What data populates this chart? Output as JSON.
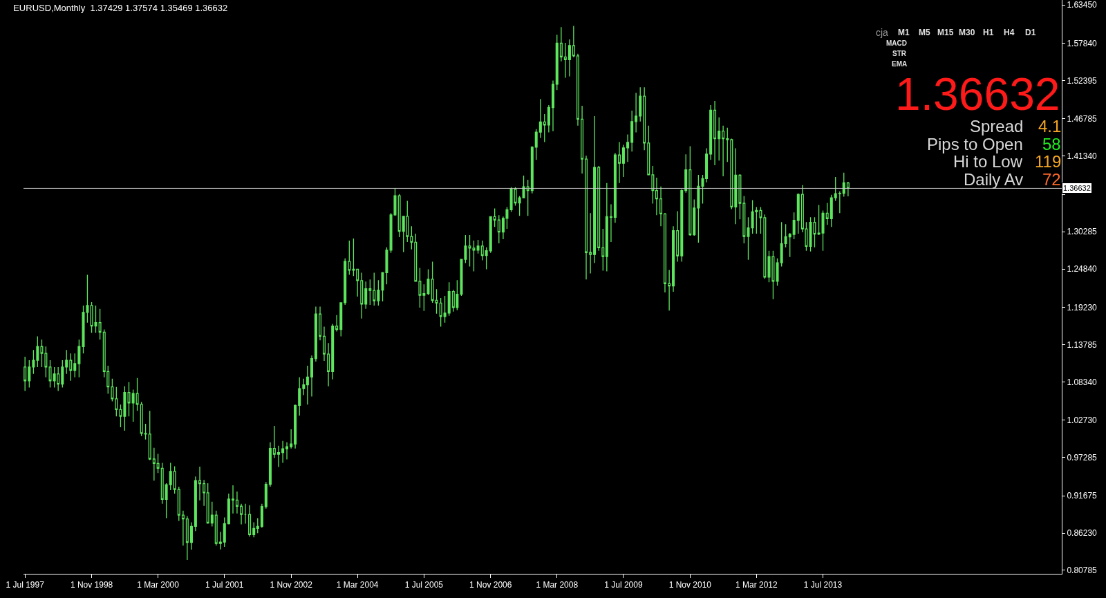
{
  "chart_data": {
    "type": "candlestick",
    "title": "EURUSD,Monthly  1.37429 1.37574 1.35469 1.36632",
    "color": "#5ee65e",
    "x": [
      "1997-07",
      "1997-08",
      "1997-09",
      "1997-10",
      "1997-11",
      "1997-12",
      "1998-01",
      "1998-02",
      "1998-03",
      "1998-04",
      "1998-05",
      "1998-06",
      "1998-07",
      "1998-08",
      "1998-09",
      "1998-10",
      "1998-11",
      "1998-12",
      "1999-01",
      "1999-02",
      "1999-03",
      "1999-04",
      "1999-05",
      "1999-06",
      "1999-07",
      "1999-08",
      "1999-09",
      "1999-10",
      "1999-11",
      "1999-12",
      "2000-01",
      "2000-02",
      "2000-03",
      "2000-04",
      "2000-05",
      "2000-06",
      "2000-07",
      "2000-08",
      "2000-09",
      "2000-10",
      "2000-11",
      "2000-12",
      "2001-01",
      "2001-02",
      "2001-03",
      "2001-04",
      "2001-05",
      "2001-06",
      "2001-07",
      "2001-08",
      "2001-09",
      "2001-10",
      "2001-11",
      "2001-12",
      "2002-01",
      "2002-02",
      "2002-03",
      "2002-04",
      "2002-05",
      "2002-06",
      "2002-07",
      "2002-08",
      "2002-09",
      "2002-10",
      "2002-11",
      "2002-12",
      "2003-01",
      "2003-02",
      "2003-03",
      "2003-04",
      "2003-05",
      "2003-06",
      "2003-07",
      "2003-08",
      "2003-09",
      "2003-10",
      "2003-11",
      "2003-12",
      "2004-01",
      "2004-02",
      "2004-03",
      "2004-04",
      "2004-05",
      "2004-06",
      "2004-07",
      "2004-08",
      "2004-09",
      "2004-10",
      "2004-11",
      "2004-12",
      "2005-01",
      "2005-02",
      "2005-03",
      "2005-04",
      "2005-05",
      "2005-06",
      "2005-07",
      "2005-08",
      "2005-09",
      "2005-10",
      "2005-11",
      "2005-12",
      "2006-01",
      "2006-02",
      "2006-03",
      "2006-04",
      "2006-05",
      "2006-06",
      "2006-07",
      "2006-08",
      "2006-09",
      "2006-10",
      "2006-11",
      "2006-12",
      "2007-01",
      "2007-02",
      "2007-03",
      "2007-04",
      "2007-05",
      "2007-06",
      "2007-07",
      "2007-08",
      "2007-09",
      "2007-10",
      "2007-11",
      "2007-12",
      "2008-01",
      "2008-02",
      "2008-03",
      "2008-04",
      "2008-05",
      "2008-06",
      "2008-07",
      "2008-08",
      "2008-09",
      "2008-10",
      "2008-11",
      "2008-12",
      "2009-01",
      "2009-02",
      "2009-03",
      "2009-04",
      "2009-05",
      "2009-06",
      "2009-07",
      "2009-08",
      "2009-09",
      "2009-10",
      "2009-11",
      "2009-12",
      "2010-01",
      "2010-02",
      "2010-03",
      "2010-04",
      "2010-05",
      "2010-06",
      "2010-07",
      "2010-08",
      "2010-09",
      "2010-10",
      "2010-11",
      "2010-12",
      "2011-01",
      "2011-02",
      "2011-03",
      "2011-04",
      "2011-05",
      "2011-06",
      "2011-07",
      "2011-08",
      "2011-09",
      "2011-10",
      "2011-11",
      "2011-12",
      "2012-01",
      "2012-02",
      "2012-03",
      "2012-04",
      "2012-05",
      "2012-06",
      "2012-07",
      "2012-08",
      "2012-09",
      "2012-10",
      "2012-11",
      "2012-12",
      "2013-01",
      "2013-02",
      "2013-03",
      "2013-04",
      "2013-05",
      "2013-06",
      "2013-07",
      "2013-08",
      "2013-09",
      "2013-10",
      "2013-11",
      "2013-12",
      "2014-01"
    ],
    "ohlc": [
      [
        1.105,
        1.12,
        1.07,
        1.085
      ],
      [
        1.085,
        1.115,
        1.075,
        1.105
      ],
      [
        1.105,
        1.13,
        1.095,
        1.115
      ],
      [
        1.115,
        1.15,
        1.105,
        1.135
      ],
      [
        1.135,
        1.145,
        1.105,
        1.125
      ],
      [
        1.125,
        1.135,
        1.09,
        1.105
      ],
      [
        1.105,
        1.115,
        1.075,
        1.085
      ],
      [
        1.085,
        1.105,
        1.075,
        1.095
      ],
      [
        1.095,
        1.105,
        1.07,
        1.08
      ],
      [
        1.08,
        1.115,
        1.075,
        1.105
      ],
      [
        1.105,
        1.13,
        1.095,
        1.115
      ],
      [
        1.115,
        1.125,
        1.085,
        1.1
      ],
      [
        1.1,
        1.125,
        1.09,
        1.11
      ],
      [
        1.11,
        1.145,
        1.09,
        1.135
      ],
      [
        1.135,
        1.195,
        1.125,
        1.185
      ],
      [
        1.185,
        1.24,
        1.17,
        1.195
      ],
      [
        1.195,
        1.2,
        1.155,
        1.165
      ],
      [
        1.165,
        1.195,
        1.155,
        1.17
      ],
      [
        1.17,
        1.19,
        1.145,
        1.156
      ],
      [
        1.156,
        1.16,
        1.09,
        1.0985
      ],
      [
        1.0985,
        1.107,
        1.066,
        1.076
      ],
      [
        1.076,
        1.088,
        1.055,
        1.0585
      ],
      [
        1.0585,
        1.076,
        1.033,
        1.043
      ],
      [
        1.043,
        1.05,
        1.017,
        1.033
      ],
      [
        1.033,
        1.077,
        1.012,
        1.068
      ],
      [
        1.068,
        1.083,
        1.033,
        1.0525
      ],
      [
        1.0525,
        1.072,
        1.025,
        1.0665
      ],
      [
        1.0665,
        1.089,
        1.041,
        1.0505
      ],
      [
        1.0505,
        1.054,
        1.004,
        1.008
      ],
      [
        1.008,
        1.022,
        0.999,
        1.007
      ],
      [
        1.007,
        1.041,
        0.969,
        0.9705
      ],
      [
        0.9705,
        0.987,
        0.939,
        0.964
      ],
      [
        0.964,
        0.978,
        0.95,
        0.957
      ],
      [
        0.957,
        0.965,
        0.905,
        0.9115
      ],
      [
        0.9115,
        0.935,
        0.884,
        0.933
      ],
      [
        0.933,
        0.965,
        0.925,
        0.9525
      ],
      [
        0.9525,
        0.96,
        0.92,
        0.926
      ],
      [
        0.926,
        0.93,
        0.88,
        0.8885
      ],
      [
        0.8885,
        0.895,
        0.844,
        0.883
      ],
      [
        0.883,
        0.887,
        0.8228,
        0.8485
      ],
      [
        0.8485,
        0.878,
        0.838,
        0.872
      ],
      [
        0.872,
        0.945,
        0.865,
        0.939
      ],
      [
        0.939,
        0.9595,
        0.91,
        0.9345
      ],
      [
        0.9345,
        0.94,
        0.902,
        0.921
      ],
      [
        0.921,
        0.935,
        0.876,
        0.877
      ],
      [
        0.877,
        0.908,
        0.872,
        0.8885
      ],
      [
        0.8885,
        0.895,
        0.844,
        0.847
      ],
      [
        0.847,
        0.864,
        0.8384,
        0.849
      ],
      [
        0.849,
        0.885,
        0.842,
        0.876
      ],
      [
        0.876,
        0.92,
        0.875,
        0.912
      ],
      [
        0.912,
        0.932,
        0.891,
        0.9105
      ],
      [
        0.9105,
        0.923,
        0.891,
        0.9015
      ],
      [
        0.9015,
        0.905,
        0.875,
        0.8895
      ],
      [
        0.8895,
        0.905,
        0.876,
        0.8895
      ],
      [
        0.8895,
        0.903,
        0.857,
        0.86
      ],
      [
        0.86,
        0.878,
        0.856,
        0.869
      ],
      [
        0.869,
        0.884,
        0.862,
        0.872
      ],
      [
        0.872,
        0.905,
        0.87,
        0.901
      ],
      [
        0.901,
        0.937,
        0.898,
        0.9335
      ],
      [
        0.9335,
        0.995,
        0.93,
        0.986
      ],
      [
        0.986,
        1.019,
        0.972,
        0.9775
      ],
      [
        0.9775,
        0.99,
        0.959,
        0.98
      ],
      [
        0.98,
        0.997,
        0.965,
        0.9855
      ],
      [
        0.9855,
        0.995,
        0.97,
        0.9885
      ],
      [
        0.9885,
        1.014,
        0.986,
        0.9925
      ],
      [
        0.9925,
        1.05,
        0.986,
        1.049
      ],
      [
        1.049,
        1.09,
        1.034,
        1.0735
      ],
      [
        1.0735,
        1.088,
        1.064,
        1.079
      ],
      [
        1.079,
        1.107,
        1.05,
        1.0905
      ],
      [
        1.0905,
        1.122,
        1.062,
        1.1175
      ],
      [
        1.1175,
        1.1935,
        1.113,
        1.1825
      ],
      [
        1.1825,
        1.1935,
        1.144,
        1.15
      ],
      [
        1.15,
        1.164,
        1.114,
        1.124
      ],
      [
        1.124,
        1.14,
        1.077,
        1.0985
      ],
      [
        1.0985,
        1.168,
        1.087,
        1.165
      ],
      [
        1.165,
        1.181,
        1.157,
        1.16
      ],
      [
        1.16,
        1.1995,
        1.15,
        1.199
      ],
      [
        1.199,
        1.264,
        1.196,
        1.2595
      ],
      [
        1.2595,
        1.29,
        1.24,
        1.2465
      ],
      [
        1.2465,
        1.293,
        1.238,
        1.248
      ],
      [
        1.248,
        1.248,
        1.208,
        1.2315
      ],
      [
        1.2315,
        1.243,
        1.176,
        1.197
      ],
      [
        1.197,
        1.23,
        1.19,
        1.2195
      ],
      [
        1.2195,
        1.233,
        1.196,
        1.217
      ],
      [
        1.217,
        1.243,
        1.195,
        1.202
      ],
      [
        1.202,
        1.232,
        1.195,
        1.2175
      ],
      [
        1.2175,
        1.244,
        1.201,
        1.243
      ],
      [
        1.243,
        1.28,
        1.226,
        1.276
      ],
      [
        1.276,
        1.33,
        1.272,
        1.3275
      ],
      [
        1.3275,
        1.3667,
        1.326,
        1.3555
      ],
      [
        1.3555,
        1.358,
        1.295,
        1.3035
      ],
      [
        1.3035,
        1.326,
        1.273,
        1.3255
      ],
      [
        1.3255,
        1.348,
        1.288,
        1.296
      ],
      [
        1.296,
        1.311,
        1.277,
        1.2875
      ],
      [
        1.2875,
        1.3,
        1.23,
        1.2305
      ],
      [
        1.2305,
        1.25,
        1.192,
        1.21
      ],
      [
        1.21,
        1.226,
        1.187,
        1.2125
      ],
      [
        1.2125,
        1.248,
        1.21,
        1.2335
      ],
      [
        1.2335,
        1.259,
        1.199,
        1.2025
      ],
      [
        1.2025,
        1.219,
        1.183,
        1.1985
      ],
      [
        1.1985,
        1.206,
        1.164,
        1.179
      ],
      [
        1.179,
        1.209,
        1.17,
        1.184
      ],
      [
        1.184,
        1.229,
        1.18,
        1.2155
      ],
      [
        1.2155,
        1.218,
        1.186,
        1.192
      ],
      [
        1.192,
        1.232,
        1.188,
        1.2115
      ],
      [
        1.2115,
        1.263,
        1.209,
        1.2625
      ],
      [
        1.2625,
        1.298,
        1.257,
        1.282
      ],
      [
        1.282,
        1.298,
        1.252,
        1.279
      ],
      [
        1.279,
        1.29,
        1.245,
        1.276
      ],
      [
        1.276,
        1.291,
        1.271,
        1.282
      ],
      [
        1.282,
        1.29,
        1.261,
        1.268
      ],
      [
        1.268,
        1.28,
        1.248,
        1.275
      ],
      [
        1.275,
        1.325,
        1.272,
        1.325
      ],
      [
        1.325,
        1.337,
        1.31,
        1.32
      ],
      [
        1.32,
        1.327,
        1.286,
        1.3025
      ],
      [
        1.3025,
        1.325,
        1.292,
        1.3225
      ],
      [
        1.3225,
        1.339,
        1.307,
        1.335
      ],
      [
        1.335,
        1.368,
        1.332,
        1.365
      ],
      [
        1.365,
        1.368,
        1.341,
        1.345
      ],
      [
        1.345,
        1.355,
        1.326,
        1.3525
      ],
      [
        1.3525,
        1.385,
        1.352,
        1.3685
      ],
      [
        1.3685,
        1.379,
        1.326,
        1.363
      ],
      [
        1.363,
        1.428,
        1.359,
        1.4265
      ],
      [
        1.4265,
        1.453,
        1.408,
        1.4485
      ],
      [
        1.4485,
        1.497,
        1.44,
        1.4635
      ],
      [
        1.4635,
        1.475,
        1.434,
        1.459
      ],
      [
        1.459,
        1.488,
        1.448,
        1.4845
      ],
      [
        1.4845,
        1.524,
        1.45,
        1.5185
      ],
      [
        1.5185,
        1.591,
        1.51,
        1.5785
      ],
      [
        1.5785,
        1.602,
        1.552,
        1.5585
      ],
      [
        1.5585,
        1.579,
        1.528,
        1.5545
      ],
      [
        1.5545,
        1.584,
        1.53,
        1.575
      ],
      [
        1.575,
        1.6038,
        1.558,
        1.56
      ],
      [
        1.56,
        1.563,
        1.458,
        1.4675
      ],
      [
        1.4675,
        1.487,
        1.388,
        1.409
      ],
      [
        1.409,
        1.414,
        1.233,
        1.2725
      ],
      [
        1.2725,
        1.33,
        1.242,
        1.2695
      ],
      [
        1.2695,
        1.472,
        1.257,
        1.397
      ],
      [
        1.397,
        1.399,
        1.275,
        1.2795
      ],
      [
        1.2795,
        1.307,
        1.246,
        1.2665
      ],
      [
        1.2665,
        1.374,
        1.245,
        1.325
      ],
      [
        1.325,
        1.343,
        1.288,
        1.324
      ],
      [
        1.324,
        1.418,
        1.316,
        1.415
      ],
      [
        1.415,
        1.434,
        1.374,
        1.403
      ],
      [
        1.403,
        1.43,
        1.383,
        1.4255
      ],
      [
        1.4255,
        1.445,
        1.405,
        1.4335
      ],
      [
        1.4335,
        1.48,
        1.42,
        1.464
      ],
      [
        1.464,
        1.506,
        1.448,
        1.472
      ],
      [
        1.472,
        1.514,
        1.464,
        1.501
      ],
      [
        1.501,
        1.514,
        1.422,
        1.4325
      ],
      [
        1.4325,
        1.458,
        1.386,
        1.386
      ],
      [
        1.386,
        1.399,
        1.344,
        1.363
      ],
      [
        1.363,
        1.382,
        1.327,
        1.351
      ],
      [
        1.351,
        1.369,
        1.311,
        1.329
      ],
      [
        1.329,
        1.33,
        1.214,
        1.227
      ],
      [
        1.227,
        1.247,
        1.1876,
        1.2235
      ],
      [
        1.2235,
        1.311,
        1.215,
        1.3045
      ],
      [
        1.3045,
        1.333,
        1.259,
        1.2675
      ],
      [
        1.2675,
        1.365,
        1.259,
        1.363
      ],
      [
        1.363,
        1.416,
        1.36,
        1.3935
      ],
      [
        1.3935,
        1.428,
        1.297,
        1.2985
      ],
      [
        1.2985,
        1.35,
        1.297,
        1.3375
      ],
      [
        1.3375,
        1.386,
        1.287,
        1.3695
      ],
      [
        1.3695,
        1.386,
        1.344,
        1.3805
      ],
      [
        1.3805,
        1.425,
        1.375,
        1.4165
      ],
      [
        1.4165,
        1.488,
        1.408,
        1.4805
      ],
      [
        1.4805,
        1.494,
        1.4,
        1.439
      ],
      [
        1.439,
        1.47,
        1.407,
        1.45
      ],
      [
        1.45,
        1.458,
        1.384,
        1.439
      ],
      [
        1.439,
        1.455,
        1.405,
        1.4375
      ],
      [
        1.4375,
        1.439,
        1.336,
        1.339
      ],
      [
        1.339,
        1.425,
        1.314,
        1.3855
      ],
      [
        1.3855,
        1.387,
        1.321,
        1.3445
      ],
      [
        1.3445,
        1.355,
        1.286,
        1.296
      ],
      [
        1.296,
        1.324,
        1.262,
        1.3085
      ],
      [
        1.3085,
        1.349,
        1.3,
        1.332
      ],
      [
        1.332,
        1.339,
        1.3,
        1.334
      ],
      [
        1.334,
        1.339,
        1.3,
        1.3235
      ],
      [
        1.3235,
        1.328,
        1.234,
        1.2365
      ],
      [
        1.2365,
        1.275,
        1.229,
        1.2665
      ],
      [
        1.2665,
        1.275,
        1.2042,
        1.2305
      ],
      [
        1.2305,
        1.264,
        1.224,
        1.2575
      ],
      [
        1.2575,
        1.317,
        1.252,
        1.2855
      ],
      [
        1.2855,
        1.314,
        1.28,
        1.2955
      ],
      [
        1.2955,
        1.301,
        1.266,
        1.299
      ],
      [
        1.299,
        1.331,
        1.292,
        1.3195
      ],
      [
        1.3195,
        1.359,
        1.3,
        1.3575
      ],
      [
        1.3575,
        1.371,
        1.302,
        1.307
      ],
      [
        1.307,
        1.317,
        1.275,
        1.2815
      ],
      [
        1.2815,
        1.324,
        1.274,
        1.3165
      ],
      [
        1.3165,
        1.324,
        1.28,
        1.2995
      ],
      [
        1.2995,
        1.342,
        1.298,
        1.301
      ],
      [
        1.301,
        1.334,
        1.275,
        1.33
      ],
      [
        1.33,
        1.345,
        1.313,
        1.322
      ],
      [
        1.322,
        1.357,
        1.31,
        1.3525
      ],
      [
        1.3525,
        1.383,
        1.348,
        1.3585
      ],
      [
        1.3585,
        1.362,
        1.33,
        1.359
      ],
      [
        1.359,
        1.3893,
        1.354,
        1.3745
      ],
      [
        1.37429,
        1.37574,
        1.35469,
        1.36632
      ]
    ],
    "xlim": [
      "1997-06-20",
      "2018-04-15"
    ],
    "xticks": [
      {
        "value": "1997-07",
        "label": "1 Jul 1997"
      },
      {
        "value": "1998-11",
        "label": "1 Nov 1998"
      },
      {
        "value": "2000-03",
        "label": "1 Mar 2000"
      },
      {
        "value": "2001-07",
        "label": "1 Jul 2001"
      },
      {
        "value": "2002-11",
        "label": "1 Nov 2002"
      },
      {
        "value": "2004-03",
        "label": "1 Mar 2004"
      },
      {
        "value": "2005-07",
        "label": "1 Jul 2005"
      },
      {
        "value": "2006-11",
        "label": "1 Nov 2006"
      },
      {
        "value": "2008-03",
        "label": "1 Mar 2008"
      },
      {
        "value": "2009-07",
        "label": "1 Jul 2009"
      },
      {
        "value": "2010-11",
        "label": "1 Nov 2010"
      },
      {
        "value": "2012-03",
        "label": "1 Mar 2012"
      },
      {
        "value": "2013-07",
        "label": "1 Jul 2013"
      }
    ],
    "ylim": [
      0.8027,
      1.6417
    ],
    "yticks": [
      {
        "value": 0.80785,
        "label": "0.80785"
      },
      {
        "value": 0.8623,
        "label": "0.86230"
      },
      0.91675,
      0.97285,
      {
        "value": 1.0273,
        "label": "1.02730"
      },
      {
        "value": 1.0834,
        "label": "1.08340"
      },
      1.13785,
      {
        "value": 1.1923,
        "label": "1.19230"
      },
      {
        "value": 1.2484,
        "label": "1.24840"
      },
      1.30285,
      {
        "value": 1.3573,
        "label": null
      },
      {
        "value": 1.4134,
        "label": "1.41340"
      },
      1.46785,
      1.52395,
      {
        "value": 1.5784,
        "label": "1.57840"
      },
      {
        "value": 1.6345,
        "label": "1.63450"
      }
    ],
    "ref_lines": [
      {
        "axis": "y",
        "value": 1.36632,
        "label": "1.36632",
        "color": "#c8c8c8"
      }
    ],
    "grid": false,
    "annotations": [
      "cja",
      "M1",
      "M5",
      "M15",
      "M30",
      "H1",
      "H4",
      "D1",
      "MACD",
      "STR",
      "EMA",
      "1.36632",
      "Spread",
      "4.1",
      "Pips to Open",
      "58",
      "Hi to Low",
      "119",
      "Daily Av",
      "72"
    ]
  }
}
